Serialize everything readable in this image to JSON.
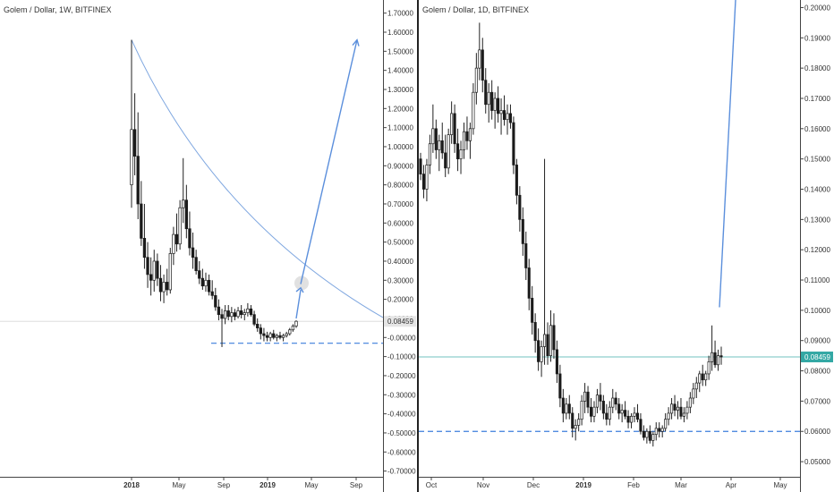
{
  "chart_data": [
    {
      "type": "candlestick",
      "title": "Golem / Dollar, 1W, BITFINEX",
      "timeframe": "1W",
      "y_ticks": [
        "1.70000",
        "1.60000",
        "1.50000",
        "1.40000",
        "1.30000",
        "1.20000",
        "1.10000",
        "1.00000",
        "0.90000",
        "0.80000",
        "0.70000",
        "0.60000",
        "0.50000",
        "0.40000",
        "0.30000",
        "0.20000",
        "0.10000",
        "-0.00000",
        "-0.10000",
        "-0.20000",
        "-0.30000",
        "-0.40000",
        "-0.50000",
        "-0.60000",
        "-0.70000"
      ],
      "x_ticks": [
        {
          "label": "2018",
          "bold": true
        },
        {
          "label": "May",
          "bold": false
        },
        {
          "label": "Sep",
          "bold": false
        },
        {
          "label": "2019",
          "bold": true
        },
        {
          "label": "May",
          "bold": false
        },
        {
          "label": "Sep",
          "bold": false
        }
      ],
      "last_price": "0.08459",
      "ylim": [
        -0.73,
        1.75
      ],
      "curve_color": "#7fa7e0",
      "arrow_color": "#5b8fdc",
      "support_color": "#3d7edc",
      "support_level": -0.03,
      "candles": [
        {
          "o": 0.8,
          "h": 1.56,
          "l": 0.68,
          "c": 1.09
        },
        {
          "o": 1.09,
          "h": 1.28,
          "l": 0.85,
          "c": 0.95
        },
        {
          "o": 0.95,
          "h": 1.18,
          "l": 0.62,
          "c": 0.7
        },
        {
          "o": 0.7,
          "h": 0.82,
          "l": 0.48,
          "c": 0.52
        },
        {
          "o": 0.52,
          "h": 0.7,
          "l": 0.36,
          "c": 0.42
        },
        {
          "o": 0.42,
          "h": 0.5,
          "l": 0.26,
          "c": 0.33
        },
        {
          "o": 0.33,
          "h": 0.42,
          "l": 0.22,
          "c": 0.3
        },
        {
          "o": 0.3,
          "h": 0.46,
          "l": 0.24,
          "c": 0.4
        },
        {
          "o": 0.4,
          "h": 0.44,
          "l": 0.27,
          "c": 0.31
        },
        {
          "o": 0.31,
          "h": 0.38,
          "l": 0.19,
          "c": 0.24
        },
        {
          "o": 0.24,
          "h": 0.33,
          "l": 0.18,
          "c": 0.29
        },
        {
          "o": 0.29,
          "h": 0.36,
          "l": 0.22,
          "c": 0.25
        },
        {
          "o": 0.25,
          "h": 0.47,
          "l": 0.23,
          "c": 0.44
        },
        {
          "o": 0.44,
          "h": 0.58,
          "l": 0.38,
          "c": 0.54
        },
        {
          "o": 0.54,
          "h": 0.65,
          "l": 0.45,
          "c": 0.49
        },
        {
          "o": 0.49,
          "h": 0.72,
          "l": 0.46,
          "c": 0.68
        },
        {
          "o": 0.68,
          "h": 0.94,
          "l": 0.6,
          "c": 0.72
        },
        {
          "o": 0.72,
          "h": 0.8,
          "l": 0.52,
          "c": 0.57
        },
        {
          "o": 0.57,
          "h": 0.66,
          "l": 0.43,
          "c": 0.47
        },
        {
          "o": 0.47,
          "h": 0.55,
          "l": 0.36,
          "c": 0.42
        },
        {
          "o": 0.42,
          "h": 0.46,
          "l": 0.33,
          "c": 0.35
        },
        {
          "o": 0.35,
          "h": 0.4,
          "l": 0.28,
          "c": 0.31
        },
        {
          "o": 0.31,
          "h": 0.36,
          "l": 0.25,
          "c": 0.27
        },
        {
          "o": 0.27,
          "h": 0.34,
          "l": 0.24,
          "c": 0.3
        },
        {
          "o": 0.3,
          "h": 0.33,
          "l": 0.22,
          "c": 0.24
        },
        {
          "o": 0.24,
          "h": 0.3,
          "l": 0.2,
          "c": 0.22
        },
        {
          "o": 0.22,
          "h": 0.26,
          "l": 0.14,
          "c": 0.16
        },
        {
          "o": 0.16,
          "h": 0.2,
          "l": 0.09,
          "c": 0.12
        },
        {
          "o": 0.12,
          "h": 0.15,
          "l": -0.05,
          "c": 0.1
        },
        {
          "o": 0.1,
          "h": 0.17,
          "l": 0.07,
          "c": 0.14
        },
        {
          "o": 0.14,
          "h": 0.17,
          "l": 0.09,
          "c": 0.11
        },
        {
          "o": 0.11,
          "h": 0.16,
          "l": 0.08,
          "c": 0.13
        },
        {
          "o": 0.13,
          "h": 0.15,
          "l": 0.09,
          "c": 0.11
        },
        {
          "o": 0.11,
          "h": 0.16,
          "l": 0.1,
          "c": 0.14
        },
        {
          "o": 0.14,
          "h": 0.17,
          "l": 0.1,
          "c": 0.12
        },
        {
          "o": 0.12,
          "h": 0.15,
          "l": 0.09,
          "c": 0.13
        },
        {
          "o": 0.13,
          "h": 0.18,
          "l": 0.11,
          "c": 0.15
        },
        {
          "o": 0.15,
          "h": 0.17,
          "l": 0.11,
          "c": 0.12
        },
        {
          "o": 0.12,
          "h": 0.14,
          "l": 0.06,
          "c": 0.07
        },
        {
          "o": 0.07,
          "h": 0.1,
          "l": 0.03,
          "c": 0.05
        },
        {
          "o": 0.05,
          "h": 0.07,
          "l": -0.01,
          "c": 0.02
        },
        {
          "o": 0.02,
          "h": 0.05,
          "l": -0.02,
          "c": 0.01
        },
        {
          "o": 0.01,
          "h": 0.03,
          "l": -0.02,
          "c": 0.0
        },
        {
          "o": 0.0,
          "h": 0.03,
          "l": -0.02,
          "c": 0.02
        },
        {
          "o": 0.02,
          "h": 0.04,
          "l": -0.01,
          "c": 0.0
        },
        {
          "o": 0.0,
          "h": 0.02,
          "l": -0.02,
          "c": 0.01
        },
        {
          "o": 0.01,
          "h": 0.03,
          "l": -0.01,
          "c": 0.0
        },
        {
          "o": 0.0,
          "h": 0.02,
          "l": -0.02,
          "c": 0.01
        },
        {
          "o": 0.01,
          "h": 0.03,
          "l": 0.0,
          "c": 0.02
        },
        {
          "o": 0.02,
          "h": 0.05,
          "l": 0.01,
          "c": 0.04
        },
        {
          "o": 0.04,
          "h": 0.07,
          "l": 0.03,
          "c": 0.06
        },
        {
          "o": 0.06,
          "h": 0.09,
          "l": 0.05,
          "c": 0.085
        }
      ]
    },
    {
      "type": "candlestick",
      "title": "Golem / Dollar, 1D, BITFINEX",
      "timeframe": "1D",
      "y_ticks": [
        "0.20000",
        "0.19000",
        "0.18000",
        "0.17000",
        "0.16000",
        "0.15000",
        "0.14000",
        "0.13000",
        "0.12000",
        "0.11000",
        "0.10000",
        "0.09000",
        "0.08000",
        "0.07000",
        "0.06000",
        "0.05000"
      ],
      "x_ticks": [
        {
          "label": "Oct",
          "bold": false
        },
        {
          "label": "Nov",
          "bold": false
        },
        {
          "label": "Dec",
          "bold": false
        },
        {
          "label": "2019",
          "bold": true
        },
        {
          "label": "Feb",
          "bold": false
        },
        {
          "label": "Mar",
          "bold": false
        },
        {
          "label": "Apr",
          "bold": false
        },
        {
          "label": "May",
          "bold": false
        }
      ],
      "last_price": "0.08459",
      "ylim": [
        0.045,
        0.2025
      ],
      "price_line_color": "#33a8a4",
      "support_color": "#3d7edc",
      "arrow_color": "#5b8fdc",
      "support_level": 0.06,
      "candles": [
        {
          "o": 0.15,
          "h": 0.152,
          "l": 0.143,
          "c": 0.145
        },
        {
          "o": 0.145,
          "h": 0.148,
          "l": 0.137,
          "c": 0.14
        },
        {
          "o": 0.14,
          "h": 0.15,
          "l": 0.136,
          "c": 0.148
        },
        {
          "o": 0.148,
          "h": 0.158,
          "l": 0.145,
          "c": 0.155
        },
        {
          "o": 0.155,
          "h": 0.168,
          "l": 0.152,
          "c": 0.16
        },
        {
          "o": 0.16,
          "h": 0.163,
          "l": 0.15,
          "c": 0.153
        },
        {
          "o": 0.153,
          "h": 0.158,
          "l": 0.146,
          "c": 0.156
        },
        {
          "o": 0.156,
          "h": 0.162,
          "l": 0.15,
          "c": 0.152
        },
        {
          "o": 0.152,
          "h": 0.158,
          "l": 0.144,
          "c": 0.147
        },
        {
          "o": 0.147,
          "h": 0.16,
          "l": 0.145,
          "c": 0.158
        },
        {
          "o": 0.158,
          "h": 0.169,
          "l": 0.155,
          "c": 0.165
        },
        {
          "o": 0.165,
          "h": 0.168,
          "l": 0.152,
          "c": 0.155
        },
        {
          "o": 0.155,
          "h": 0.16,
          "l": 0.146,
          "c": 0.15
        },
        {
          "o": 0.15,
          "h": 0.156,
          "l": 0.145,
          "c": 0.153
        },
        {
          "o": 0.153,
          "h": 0.162,
          "l": 0.15,
          "c": 0.159
        },
        {
          "o": 0.159,
          "h": 0.164,
          "l": 0.153,
          "c": 0.156
        },
        {
          "o": 0.156,
          "h": 0.162,
          "l": 0.15,
          "c": 0.16
        },
        {
          "o": 0.16,
          "h": 0.175,
          "l": 0.158,
          "c": 0.172
        },
        {
          "o": 0.172,
          "h": 0.185,
          "l": 0.168,
          "c": 0.18
        },
        {
          "o": 0.18,
          "h": 0.195,
          "l": 0.176,
          "c": 0.186
        },
        {
          "o": 0.186,
          "h": 0.19,
          "l": 0.172,
          "c": 0.176
        },
        {
          "o": 0.176,
          "h": 0.18,
          "l": 0.165,
          "c": 0.168
        },
        {
          "o": 0.168,
          "h": 0.175,
          "l": 0.162,
          "c": 0.172
        },
        {
          "o": 0.172,
          "h": 0.176,
          "l": 0.163,
          "c": 0.166
        },
        {
          "o": 0.166,
          "h": 0.172,
          "l": 0.16,
          "c": 0.17
        },
        {
          "o": 0.17,
          "h": 0.174,
          "l": 0.162,
          "c": 0.165
        },
        {
          "o": 0.165,
          "h": 0.17,
          "l": 0.158,
          "c": 0.166
        },
        {
          "o": 0.166,
          "h": 0.171,
          "l": 0.161,
          "c": 0.163
        },
        {
          "o": 0.163,
          "h": 0.168,
          "l": 0.158,
          "c": 0.165
        },
        {
          "o": 0.165,
          "h": 0.168,
          "l": 0.16,
          "c": 0.162
        },
        {
          "o": 0.162,
          "h": 0.164,
          "l": 0.145,
          "c": 0.148
        },
        {
          "o": 0.148,
          "h": 0.15,
          "l": 0.135,
          "c": 0.138
        },
        {
          "o": 0.138,
          "h": 0.141,
          "l": 0.126,
          "c": 0.13
        },
        {
          "o": 0.13,
          "h": 0.134,
          "l": 0.118,
          "c": 0.122
        },
        {
          "o": 0.122,
          "h": 0.126,
          "l": 0.11,
          "c": 0.114
        },
        {
          "o": 0.114,
          "h": 0.117,
          "l": 0.1,
          "c": 0.104
        },
        {
          "o": 0.104,
          "h": 0.108,
          "l": 0.092,
          "c": 0.096
        },
        {
          "o": 0.096,
          "h": 0.099,
          "l": 0.086,
          "c": 0.09
        },
        {
          "o": 0.09,
          "h": 0.094,
          "l": 0.08,
          "c": 0.083
        },
        {
          "o": 0.083,
          "h": 0.09,
          "l": 0.078,
          "c": 0.088
        },
        {
          "o": 0.088,
          "h": 0.15,
          "l": 0.082,
          "c": 0.092
        },
        {
          "o": 0.092,
          "h": 0.096,
          "l": 0.082,
          "c": 0.085
        },
        {
          "o": 0.085,
          "h": 0.1,
          "l": 0.083,
          "c": 0.095
        },
        {
          "o": 0.095,
          "h": 0.099,
          "l": 0.084,
          "c": 0.087
        },
        {
          "o": 0.087,
          "h": 0.09,
          "l": 0.076,
          "c": 0.079
        },
        {
          "o": 0.079,
          "h": 0.082,
          "l": 0.068,
          "c": 0.071
        },
        {
          "o": 0.071,
          "h": 0.074,
          "l": 0.063,
          "c": 0.066
        },
        {
          "o": 0.066,
          "h": 0.071,
          "l": 0.064,
          "c": 0.069
        },
        {
          "o": 0.069,
          "h": 0.072,
          "l": 0.064,
          "c": 0.066
        },
        {
          "o": 0.066,
          "h": 0.068,
          "l": 0.058,
          "c": 0.061
        },
        {
          "o": 0.061,
          "h": 0.064,
          "l": 0.057,
          "c": 0.062
        },
        {
          "o": 0.062,
          "h": 0.066,
          "l": 0.06,
          "c": 0.064
        },
        {
          "o": 0.064,
          "h": 0.072,
          "l": 0.062,
          "c": 0.07
        },
        {
          "o": 0.07,
          "h": 0.076,
          "l": 0.066,
          "c": 0.073
        },
        {
          "o": 0.073,
          "h": 0.075,
          "l": 0.066,
          "c": 0.068
        },
        {
          "o": 0.068,
          "h": 0.071,
          "l": 0.063,
          "c": 0.065
        },
        {
          "o": 0.065,
          "h": 0.07,
          "l": 0.063,
          "c": 0.068
        },
        {
          "o": 0.068,
          "h": 0.074,
          "l": 0.066,
          "c": 0.072
        },
        {
          "o": 0.072,
          "h": 0.076,
          "l": 0.067,
          "c": 0.07
        },
        {
          "o": 0.07,
          "h": 0.072,
          "l": 0.064,
          "c": 0.066
        },
        {
          "o": 0.066,
          "h": 0.069,
          "l": 0.062,
          "c": 0.064
        },
        {
          "o": 0.064,
          "h": 0.07,
          "l": 0.062,
          "c": 0.068
        },
        {
          "o": 0.068,
          "h": 0.074,
          "l": 0.066,
          "c": 0.071
        },
        {
          "o": 0.071,
          "h": 0.073,
          "l": 0.067,
          "c": 0.069
        },
        {
          "o": 0.069,
          "h": 0.071,
          "l": 0.064,
          "c": 0.066
        },
        {
          "o": 0.066,
          "h": 0.069,
          "l": 0.063,
          "c": 0.067
        },
        {
          "o": 0.067,
          "h": 0.07,
          "l": 0.064,
          "c": 0.065
        },
        {
          "o": 0.065,
          "h": 0.067,
          "l": 0.061,
          "c": 0.063
        },
        {
          "o": 0.063,
          "h": 0.066,
          "l": 0.061,
          "c": 0.065
        },
        {
          "o": 0.065,
          "h": 0.068,
          "l": 0.063,
          "c": 0.066
        },
        {
          "o": 0.066,
          "h": 0.069,
          "l": 0.063,
          "c": 0.064
        },
        {
          "o": 0.064,
          "h": 0.066,
          "l": 0.059,
          "c": 0.06
        },
        {
          "o": 0.06,
          "h": 0.062,
          "l": 0.057,
          "c": 0.058
        },
        {
          "o": 0.058,
          "h": 0.061,
          "l": 0.056,
          "c": 0.06
        },
        {
          "o": 0.06,
          "h": 0.062,
          "l": 0.056,
          "c": 0.057
        },
        {
          "o": 0.057,
          "h": 0.06,
          "l": 0.055,
          "c": 0.059
        },
        {
          "o": 0.059,
          "h": 0.063,
          "l": 0.057,
          "c": 0.061
        },
        {
          "o": 0.061,
          "h": 0.063,
          "l": 0.058,
          "c": 0.06
        },
        {
          "o": 0.06,
          "h": 0.062,
          "l": 0.058,
          "c": 0.061
        },
        {
          "o": 0.061,
          "h": 0.066,
          "l": 0.06,
          "c": 0.064
        },
        {
          "o": 0.064,
          "h": 0.068,
          "l": 0.062,
          "c": 0.066
        },
        {
          "o": 0.066,
          "h": 0.071,
          "l": 0.064,
          "c": 0.069
        },
        {
          "o": 0.069,
          "h": 0.072,
          "l": 0.065,
          "c": 0.067
        },
        {
          "o": 0.067,
          "h": 0.07,
          "l": 0.064,
          "c": 0.068
        },
        {
          "o": 0.068,
          "h": 0.071,
          "l": 0.064,
          "c": 0.065
        },
        {
          "o": 0.065,
          "h": 0.068,
          "l": 0.063,
          "c": 0.066
        },
        {
          "o": 0.066,
          "h": 0.07,
          "l": 0.064,
          "c": 0.068
        },
        {
          "o": 0.068,
          "h": 0.073,
          "l": 0.066,
          "c": 0.071
        },
        {
          "o": 0.071,
          "h": 0.076,
          "l": 0.069,
          "c": 0.074
        },
        {
          "o": 0.074,
          "h": 0.078,
          "l": 0.071,
          "c": 0.076
        },
        {
          "o": 0.076,
          "h": 0.08,
          "l": 0.073,
          "c": 0.079
        },
        {
          "o": 0.079,
          "h": 0.082,
          "l": 0.075,
          "c": 0.077
        },
        {
          "o": 0.077,
          "h": 0.08,
          "l": 0.075,
          "c": 0.079
        },
        {
          "o": 0.079,
          "h": 0.085,
          "l": 0.077,
          "c": 0.083
        },
        {
          "o": 0.083,
          "h": 0.095,
          "l": 0.08,
          "c": 0.086
        },
        {
          "o": 0.086,
          "h": 0.09,
          "l": 0.081,
          "c": 0.082
        },
        {
          "o": 0.082,
          "h": 0.087,
          "l": 0.08,
          "c": 0.085
        },
        {
          "o": 0.085,
          "h": 0.088,
          "l": 0.082,
          "c": 0.08459
        }
      ]
    }
  ]
}
